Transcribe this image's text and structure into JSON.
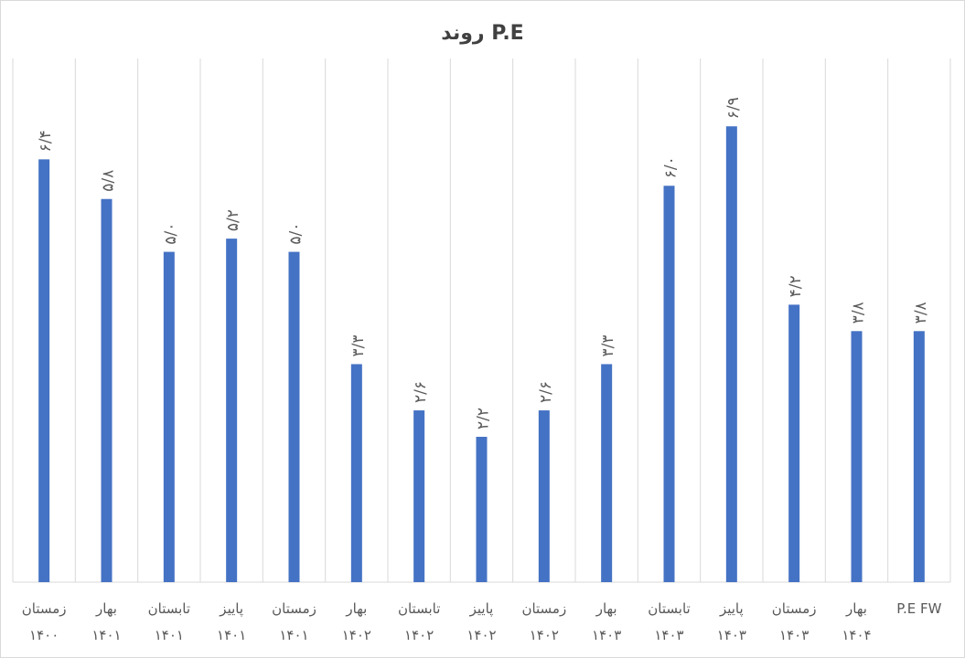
{
  "chart_data": {
    "type": "bar",
    "title": "روند P.E",
    "categories": [
      {
        "line1": "زمستان",
        "line2": "۱۴۰۰"
      },
      {
        "line1": "بهار",
        "line2": "۱۴۰۱"
      },
      {
        "line1": "تابستان",
        "line2": "۱۴۰۱"
      },
      {
        "line1": "پاییز",
        "line2": "۱۴۰۱"
      },
      {
        "line1": "زمستان",
        "line2": "۱۴۰۱"
      },
      {
        "line1": "بهار",
        "line2": "۱۴۰۲"
      },
      {
        "line1": "تابستان",
        "line2": "۱۴۰۲"
      },
      {
        "line1": "پاییز",
        "line2": "۱۴۰۲"
      },
      {
        "line1": "زمستان",
        "line2": "۱۴۰۲"
      },
      {
        "line1": "بهار",
        "line2": "۱۴۰۳"
      },
      {
        "line1": "تابستان",
        "line2": "۱۴۰۳"
      },
      {
        "line1": "پاییز",
        "line2": "۱۴۰۳"
      },
      {
        "line1": "زمستان",
        "line2": "۱۴۰۳"
      },
      {
        "line1": "بهار",
        "line2": "۱۴۰۴"
      },
      {
        "line1": "P.E FW",
        "line2": ""
      }
    ],
    "values": [
      6.4,
      5.8,
      5.0,
      5.2,
      5.0,
      3.3,
      2.6,
      2.2,
      2.6,
      3.3,
      6.0,
      6.9,
      4.2,
      3.8,
      3.8
    ],
    "data_labels": [
      "۶/۴",
      "۵/۸",
      "۵/۰",
      "۵/۲",
      "۵/۰",
      "۳/۳",
      "۲/۶",
      "۲/۲",
      "۲/۶",
      "۳/۳",
      "۶/۰",
      "۶/۹",
      "۴/۲",
      "۳/۸",
      "۳/۸"
    ],
    "ylim": [
      0,
      8.0
    ],
    "grid": "vertical category separators",
    "legend": "none",
    "colors": {
      "bar": "#4472C4",
      "grid": "#d9d9d9",
      "text": "#595959",
      "title": "#404040"
    }
  }
}
